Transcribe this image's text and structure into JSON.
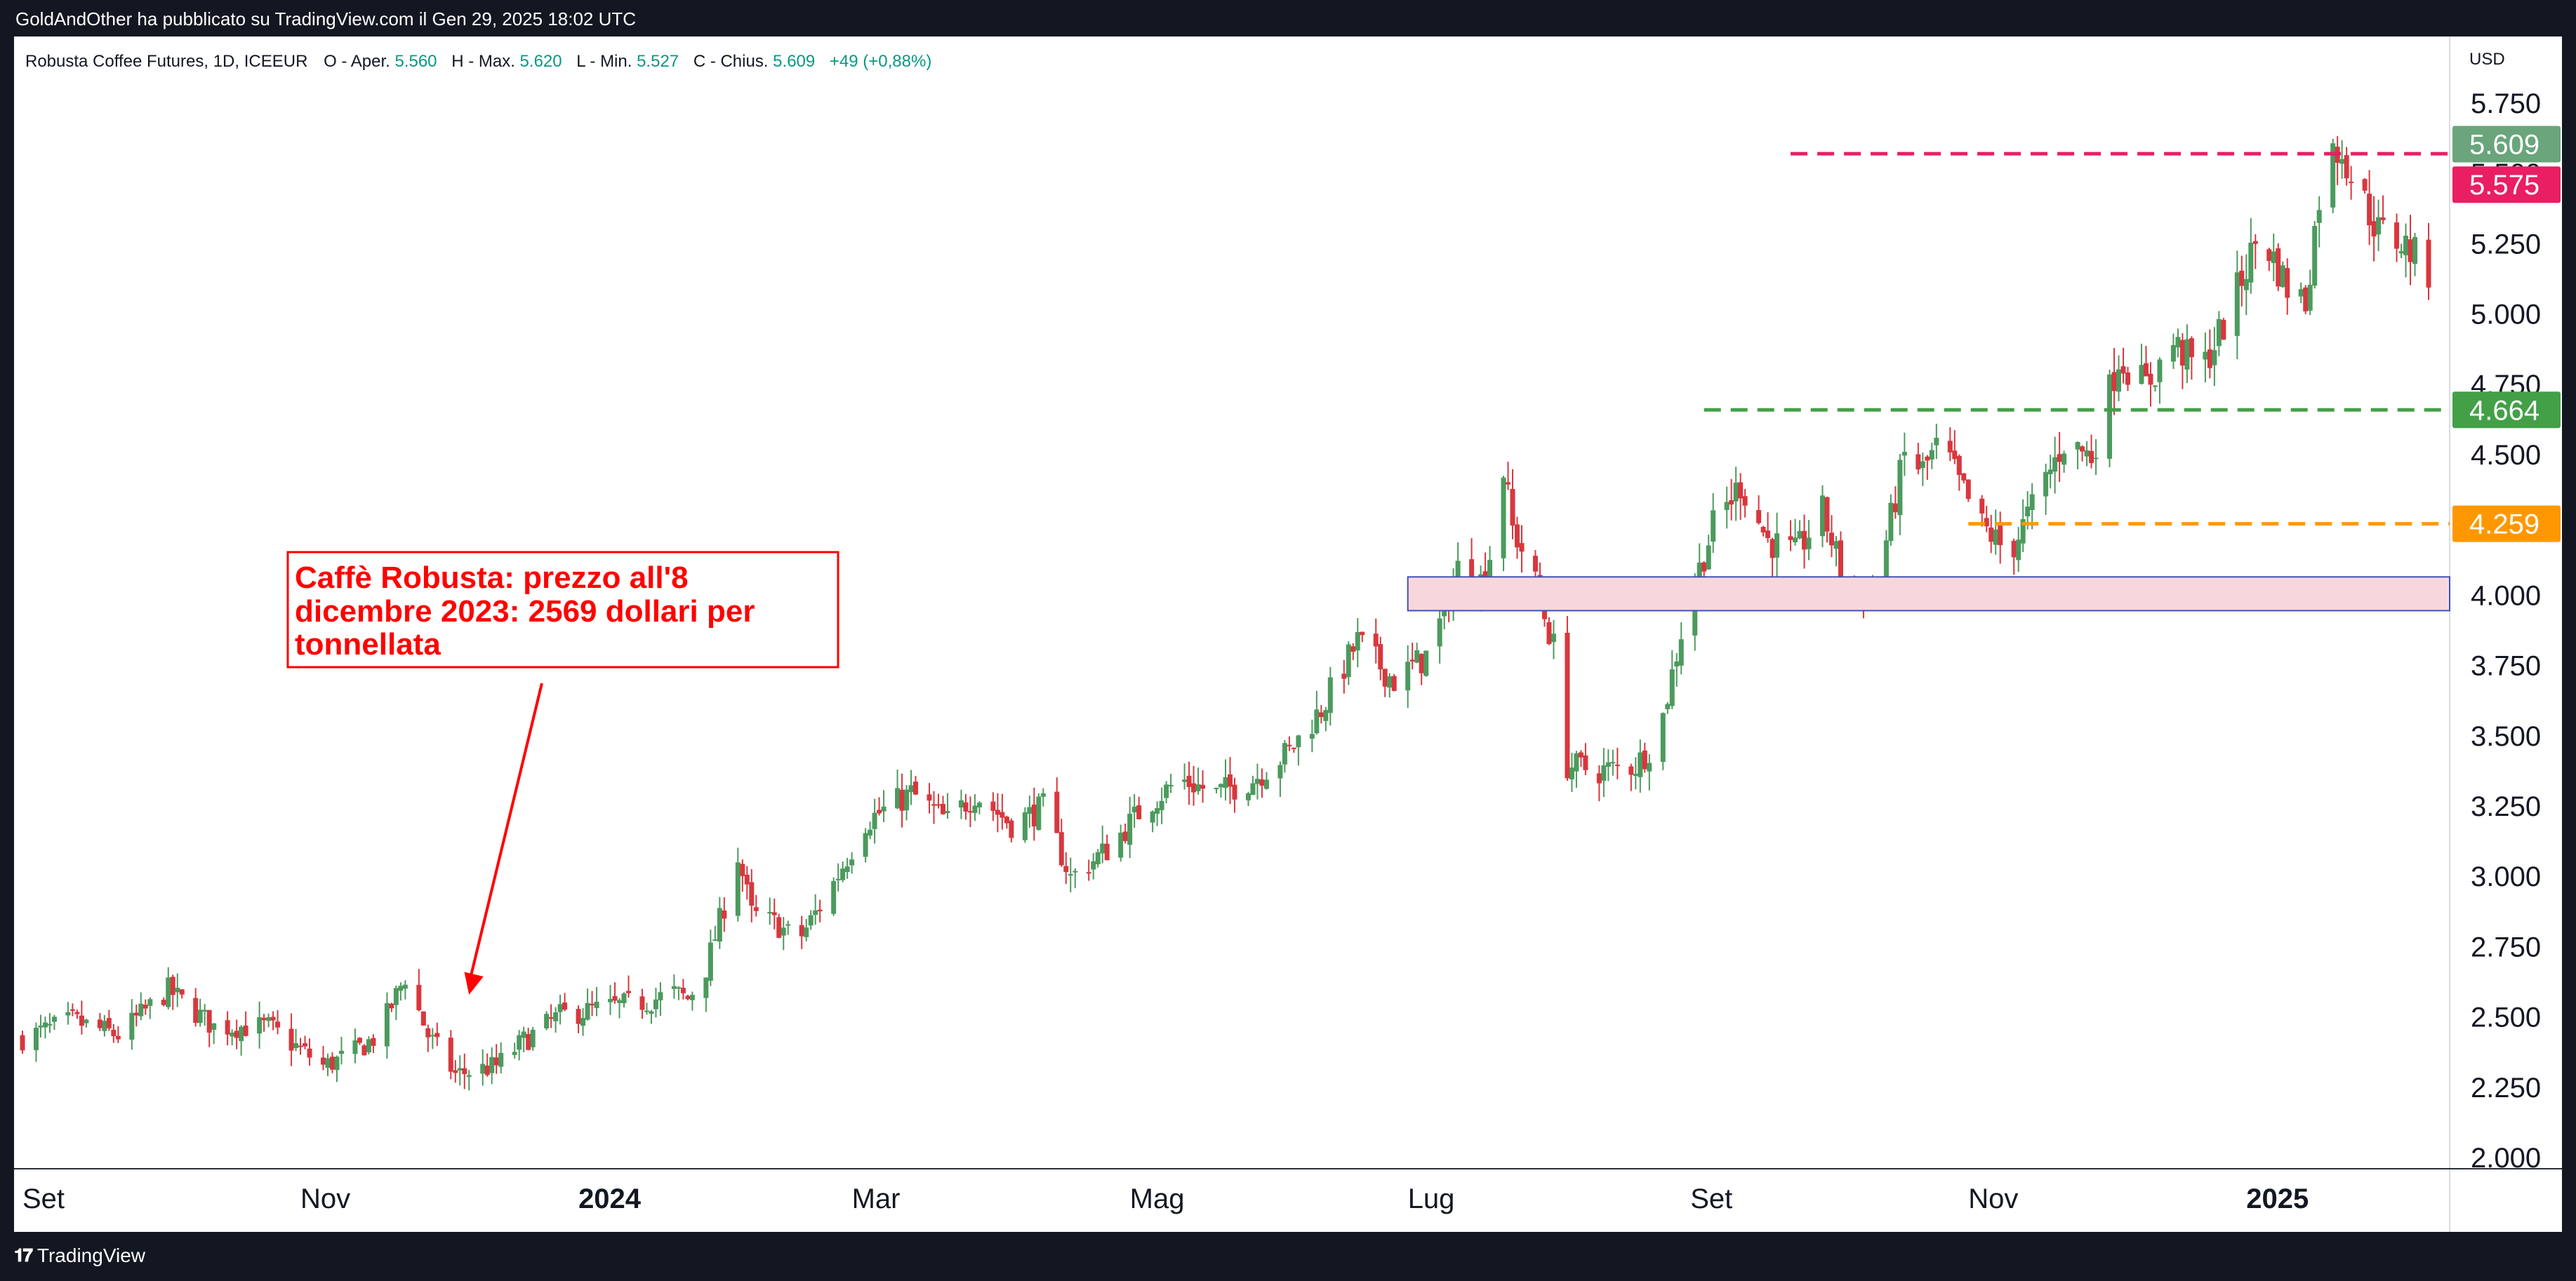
{
  "header": {
    "publisher_line": "GoldAndOther ha pubblicato su TradingView.com il Gen 29, 2025 18:02 UTC"
  },
  "footer": {
    "logo_text": "TradingView",
    "logo_mark": "𝟏𝟕"
  },
  "legend": {
    "symbol": "Robusta Coffee Futures, 1D, ICEEUR",
    "open_label": "O - Aper.",
    "open": "5.560",
    "high_label": "H - Max.",
    "high": "5.620",
    "low_label": "L - Min.",
    "low": "5.527",
    "close_label": "C - Chius.",
    "close": "5.609",
    "change": "+49 (+0,88%)"
  },
  "colors": {
    "up": "#26a69a",
    "down": "#ef5350",
    "up_candle": "#4c9a5e",
    "down_candle": "#d8373e",
    "resistance": "#e91e63",
    "support_green": "#43a047",
    "support_orange": "#ff9800",
    "zone_fill": "#f8d7dc",
    "zone_border": "#3f51b5",
    "annotation": "#ff0000"
  },
  "annotation": {
    "line1": "Caffè Robusta: prezzo all'8",
    "line2": "dicembre 2023: 2569 dollari per",
    "line3": "tonnellata",
    "target_date": "2023-12-08",
    "target_price": 2569
  },
  "chart_data": {
    "type": "candlestick",
    "title": "Robusta Coffee Futures, 1D, ICEEUR",
    "currency": "USD",
    "ylim": [
      2000,
      5800
    ],
    "y_ticks": [
      "5.750",
      "5.500",
      "5.250",
      "5.000",
      "4.750",
      "4.500",
      "4.250",
      "4.000",
      "3.750",
      "3.500",
      "3.250",
      "3.000",
      "2.750",
      "2.500",
      "2.250",
      "2.000"
    ],
    "y_tick_values": [
      5750,
      5500,
      5250,
      5000,
      4750,
      4500,
      4250,
      4000,
      3750,
      3500,
      3250,
      3000,
      2750,
      2500,
      2250,
      2000
    ],
    "x_range": [
      "2023-09-01",
      "2025-02-10"
    ],
    "x_ticks": [
      {
        "label": "Set",
        "date": "2023-09-01",
        "bold": false
      },
      {
        "label": "Nov",
        "date": "2023-11-01",
        "bold": false
      },
      {
        "label": "2024",
        "date": "2024-01-01",
        "bold": true
      },
      {
        "label": "Mar",
        "date": "2024-03-01",
        "bold": false
      },
      {
        "label": "Mag",
        "date": "2024-05-01",
        "bold": false
      },
      {
        "label": "Lug",
        "date": "2024-07-01",
        "bold": false
      },
      {
        "label": "Set",
        "date": "2024-09-01",
        "bold": false
      },
      {
        "label": "Nov",
        "date": "2024-11-01",
        "bold": false
      },
      {
        "label": "2025",
        "date": "2025-01-01",
        "bold": true
      }
    ],
    "price_path": [
      [
        "2023-09-01",
        2430
      ],
      [
        "2023-09-12",
        2490
      ],
      [
        "2023-09-22",
        2440
      ],
      [
        "2023-10-03",
        2600
      ],
      [
        "2023-10-13",
        2470
      ],
      [
        "2023-10-25",
        2470
      ],
      [
        "2023-11-06",
        2330
      ],
      [
        "2023-11-12",
        2370
      ],
      [
        "2023-11-18",
        2440
      ],
      [
        "2023-11-24",
        2650
      ],
      [
        "2023-11-29",
        2440
      ],
      [
        "2023-12-05",
        2300
      ],
      [
        "2023-12-14",
        2330
      ],
      [
        "2023-12-20",
        2420
      ],
      [
        "2023-12-28",
        2510
      ],
      [
        "2024-01-08",
        2540
      ],
      [
        "2024-01-16",
        2560
      ],
      [
        "2024-01-22",
        2590
      ],
      [
        "2024-01-25",
        2569
      ],
      [
        "2024-01-29",
        2680
      ],
      [
        "2024-02-02",
        2900
      ],
      [
        "2024-02-04",
        3150
      ],
      [
        "2024-02-08",
        2870
      ],
      [
        "2024-02-14",
        2830
      ],
      [
        "2024-02-18",
        2770
      ],
      [
        "2024-02-25",
        2950
      ],
      [
        "2024-03-04",
        3200
      ],
      [
        "2024-03-14",
        3300
      ],
      [
        "2024-03-22",
        3200
      ],
      [
        "2024-03-28",
        3300
      ],
      [
        "2024-04-05",
        3190
      ],
      [
        "2024-04-12",
        3250
      ],
      [
        "2024-04-18",
        3000
      ],
      [
        "2024-04-26",
        3100
      ],
      [
        "2024-05-04",
        3250
      ],
      [
        "2024-05-12",
        3350
      ],
      [
        "2024-05-20",
        3300
      ],
      [
        "2024-05-28",
        3350
      ],
      [
        "2024-06-05",
        3450
      ],
      [
        "2024-06-12",
        3600
      ],
      [
        "2024-06-20",
        3840
      ],
      [
        "2024-06-28",
        3700
      ],
      [
        "2024-07-06",
        3800
      ],
      [
        "2024-07-12",
        4100
      ],
      [
        "2024-07-18",
        4050
      ],
      [
        "2024-07-22",
        4450
      ],
      [
        "2024-07-24",
        4240
      ],
      [
        "2024-07-28",
        4100
      ],
      [
        "2024-08-02",
        3820
      ],
      [
        "2024-08-05",
        3400
      ],
      [
        "2024-08-12",
        3380
      ],
      [
        "2024-08-20",
        3400
      ],
      [
        "2024-08-25",
        3500
      ],
      [
        "2024-08-31",
        3950
      ],
      [
        "2024-09-06",
        4250
      ],
      [
        "2024-09-12",
        4400
      ],
      [
        "2024-09-18",
        4200
      ],
      [
        "2024-09-24",
        4150
      ],
      [
        "2024-09-30",
        4300
      ],
      [
        "2024-10-05",
        4050
      ],
      [
        "2024-10-10",
        4000
      ],
      [
        "2024-10-14",
        4200
      ],
      [
        "2024-10-18",
        4500
      ],
      [
        "2024-10-22",
        4450
      ],
      [
        "2024-10-26",
        4550
      ],
      [
        "2024-10-30",
        4400
      ],
      [
        "2024-11-04",
        4250
      ],
      [
        "2024-11-10",
        4150
      ],
      [
        "2024-11-16",
        4350
      ],
      [
        "2024-11-22",
        4550
      ],
      [
        "2024-11-28",
        4500
      ],
      [
        "2024-12-04",
        4850
      ],
      [
        "2024-12-10",
        4750
      ],
      [
        "2024-12-16",
        4900
      ],
      [
        "2024-12-22",
        4800
      ],
      [
        "2024-12-28",
        5000
      ],
      [
        "2025-01-04",
        5300
      ],
      [
        "2025-01-10",
        5100
      ],
      [
        "2025-01-14",
        5050
      ],
      [
        "2025-01-18",
        5550
      ],
      [
        "2025-01-22",
        5600
      ],
      [
        "2025-01-24",
        5500
      ],
      [
        "2025-01-30",
        5300
      ],
      [
        "2025-02-05",
        5250
      ],
      [
        "2025-02-10",
        5150
      ]
    ],
    "last_price": 5609,
    "levels": [
      {
        "name": "resistance",
        "value": 5575,
        "label": "5.575",
        "style": "dashed",
        "from": "2024-09-23"
      },
      {
        "name": "support-green",
        "value": 4664,
        "label": "4.664",
        "style": "dashed",
        "from": "2024-09-04"
      },
      {
        "name": "support-orange",
        "value": 4259,
        "label": "4.259",
        "style": "dashed",
        "from": "2024-11-01"
      }
    ],
    "last_price_label": "5.609",
    "zone": {
      "low": 3950,
      "high": 4070,
      "from": "2024-07-01"
    }
  }
}
